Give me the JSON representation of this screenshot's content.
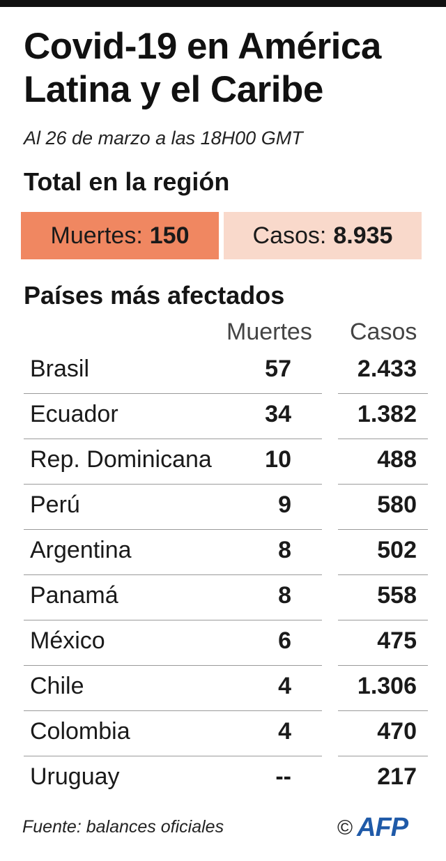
{
  "title": "Covid-19 en América Latina y el Caribe",
  "subtitle": "Al 26 de marzo a las 18H00 GMT",
  "region": {
    "heading": "Total en la región",
    "deaths_label": "Muertes:",
    "deaths_value": "150",
    "cases_label": "Casos:",
    "cases_value": "8.935"
  },
  "countries": {
    "heading": "Países más afectados",
    "col_deaths": "Muertes",
    "col_cases": "Casos",
    "rows": [
      {
        "country": "Brasil",
        "deaths": "57",
        "cases": "2.433"
      },
      {
        "country": "Ecuador",
        "deaths": "34",
        "cases": "1.382"
      },
      {
        "country": "Rep. Dominicana",
        "deaths": "10",
        "cases": "488"
      },
      {
        "country": "Perú",
        "deaths": "9",
        "cases": "580"
      },
      {
        "country": "Argentina",
        "deaths": "8",
        "cases": "502"
      },
      {
        "country": "Panamá",
        "deaths": "8",
        "cases": "558"
      },
      {
        "country": "México",
        "deaths": "6",
        "cases": "475"
      },
      {
        "country": "Chile",
        "deaths": "4",
        "cases": "1.306"
      },
      {
        "country": "Colombia",
        "deaths": "4",
        "cases": "470"
      },
      {
        "country": "Uruguay",
        "deaths": "--",
        "cases": "217"
      }
    ]
  },
  "footer": {
    "source": "Fuente: balances oficiales",
    "copyright": "©",
    "agency": "AFP"
  },
  "colors": {
    "deaths_box": "#f08761",
    "cases_box": "#f9d9cb",
    "logo": "#1f5aa8"
  }
}
